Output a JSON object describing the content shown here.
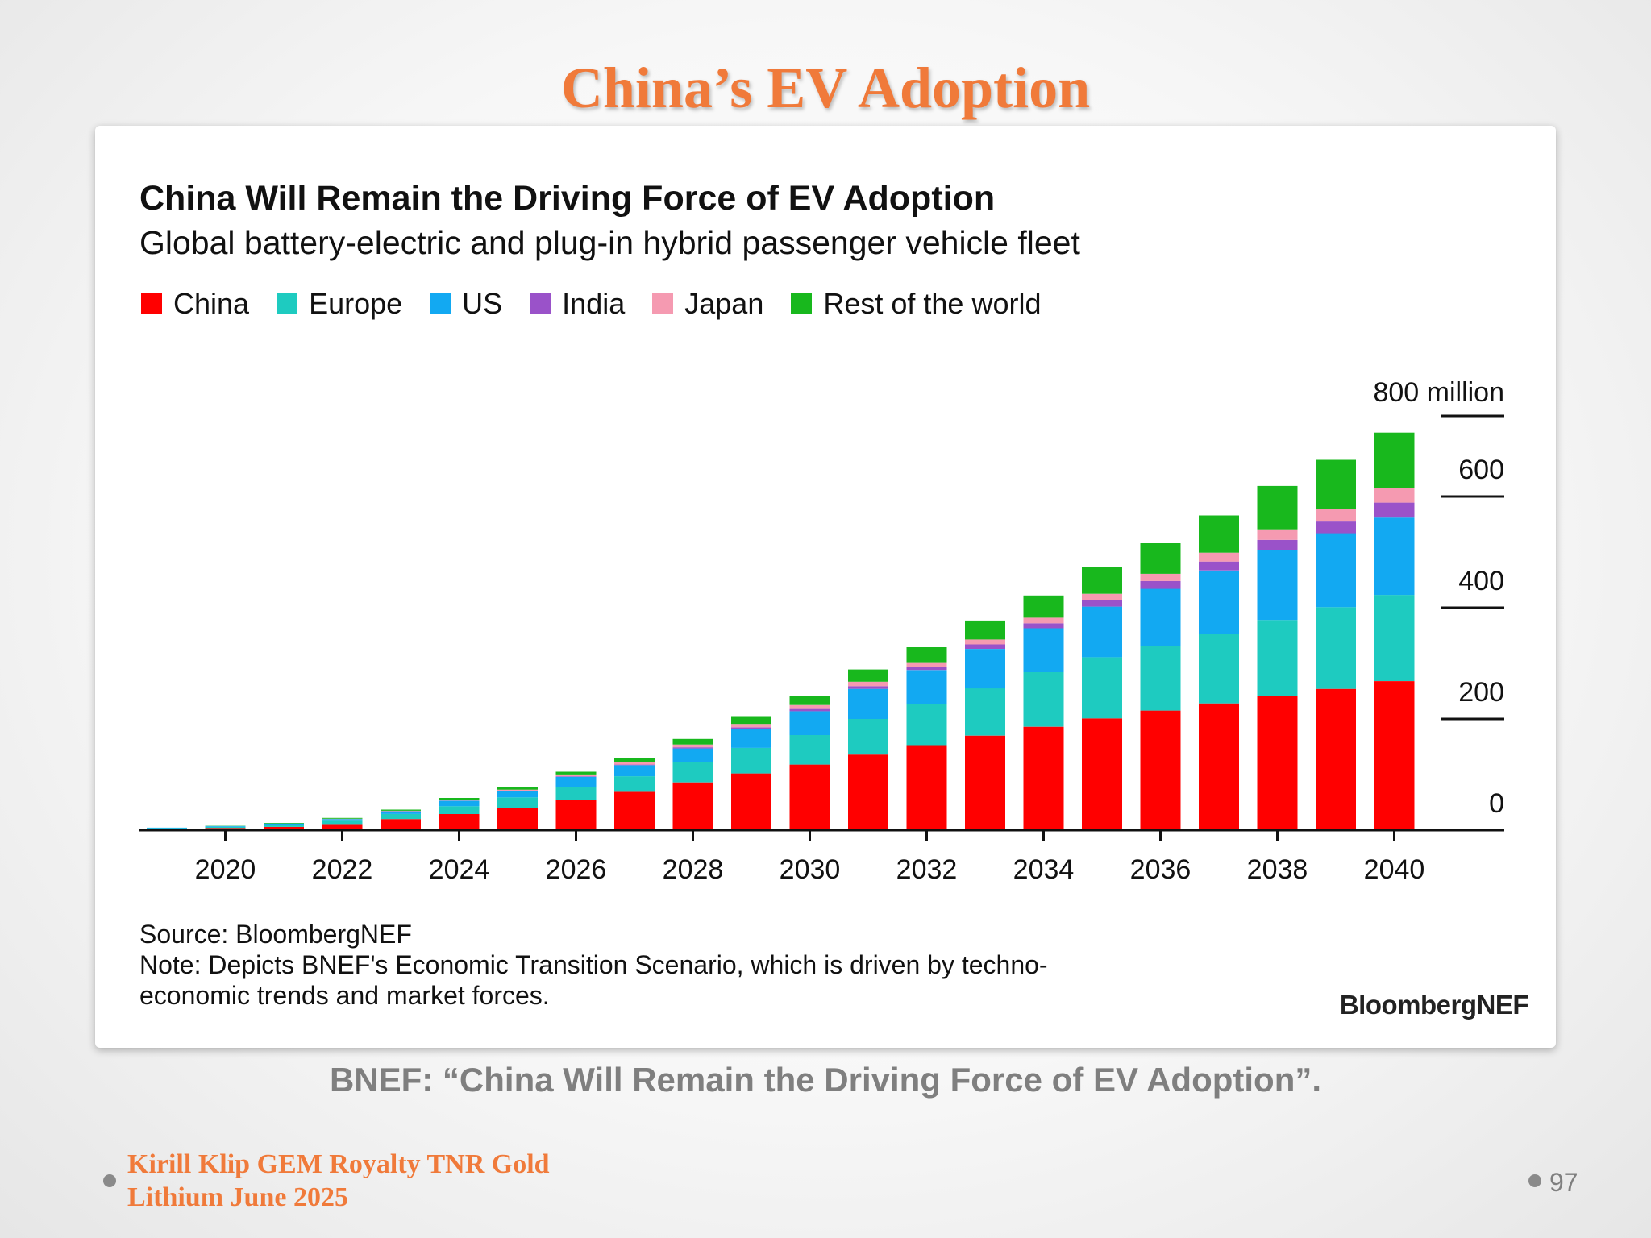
{
  "slide": {
    "title": "China’s EV Adoption",
    "caption": "BNEF: “China Will Remain the Driving Force of EV Adoption”.",
    "footer_line1": "Kirill Klip GEM Royalty TNR Gold",
    "footer_line2": "Lithium June 2025",
    "page_number": "97"
  },
  "colors": {
    "title": "#f07a3a",
    "China": "#ff0000",
    "Europe": "#1ecbc0",
    "US": "#12a9f2",
    "India": "#9a52c9",
    "Japan": "#f59ab1",
    "Rest of the world": "#18b81d"
  },
  "chart_data": {
    "type": "bar",
    "stacked": true,
    "title": "China Will Remain the Driving Force of EV Adoption",
    "subtitle": "Global battery-electric and plug-in hybrid passenger vehicle fleet",
    "y_unit_label": "800 million",
    "y_axis_position": "right",
    "ylim": [
      0,
      800
    ],
    "yticks": [
      0,
      200,
      400,
      600
    ],
    "x": [
      2019,
      2020,
      2021,
      2022,
      2023,
      2024,
      2025,
      2026,
      2027,
      2028,
      2029,
      2030,
      2031,
      2032,
      2033,
      2034,
      2035,
      2036,
      2037,
      2038,
      2039,
      2040
    ],
    "xtick_labels": [
      "2020",
      "2022",
      "2024",
      "2026",
      "2028",
      "2030",
      "2032",
      "2034",
      "2036",
      "2038",
      "2040"
    ],
    "legend_position": "top-left",
    "series": [
      {
        "name": "China",
        "values": [
          2,
          4,
          6,
          11,
          20,
          29,
          40,
          54,
          69,
          86,
          102,
          118,
          136,
          153,
          170,
          186,
          201,
          215,
          228,
          241,
          254,
          268
        ]
      },
      {
        "name": "Europe",
        "values": [
          1.5,
          2,
          4,
          6,
          9,
          14,
          19,
          24,
          28,
          37,
          46,
          53,
          64,
          74,
          85,
          98,
          110,
          116,
          125,
          137,
          147,
          155
        ]
      },
      {
        "name": "US",
        "values": [
          1,
          1.5,
          2,
          3,
          5,
          10,
          12,
          18,
          20,
          24,
          34,
          43,
          54,
          61,
          71,
          79,
          91,
          103,
          114,
          125,
          133,
          139
        ]
      },
      {
        "name": "India",
        "values": [
          0,
          0,
          0,
          0,
          0,
          0,
          0,
          1,
          1,
          2,
          3,
          4,
          5,
          6,
          8,
          9,
          12,
          14,
          16,
          19,
          21,
          27
        ]
      },
      {
        "name": "Japan",
        "values": [
          0,
          0,
          0,
          0.5,
          1,
          2,
          2,
          3,
          4,
          5,
          6,
          7,
          8,
          8,
          9,
          10,
          11,
          13,
          16,
          19,
          22,
          26
        ]
      },
      {
        "name": "Rest of the world",
        "values": [
          0,
          0.5,
          1,
          1.5,
          2,
          3,
          4,
          5,
          7,
          10,
          14,
          17,
          22,
          27,
          34,
          40,
          48,
          55,
          67,
          78,
          89,
          100
        ]
      }
    ],
    "source": "Source: BloombergNEF",
    "note_line1": "Note: Depicts BNEF's Economic Transition Scenario, which is driven by techno-",
    "note_line2": "economic trends and market forces.",
    "logo_text": "BloombergNEF"
  }
}
